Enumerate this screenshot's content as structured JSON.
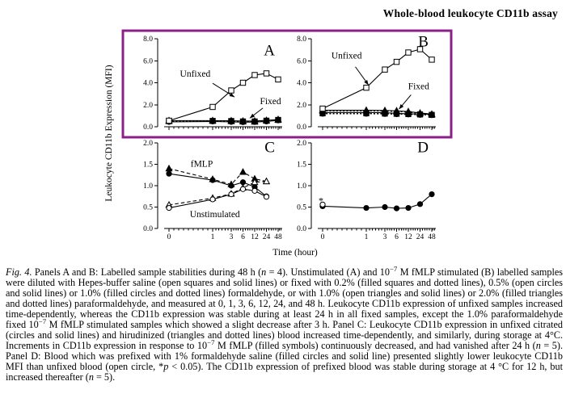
{
  "page_title": "Whole-blood leukocyte CD11b assay",
  "figure": {
    "ylabel": "Leukocyte CD11b Expression (MFI)",
    "xlabel": "Time (hour)",
    "highlight_color": "#8b2089"
  },
  "chart_data": {
    "type": "line",
    "x_label": "Time (hour)",
    "x_values": [
      0,
      1,
      3,
      6,
      12,
      24,
      48
    ],
    "x_scale": "zero-then-log",
    "panels": [
      {
        "label": "A",
        "ylim": [
          0,
          8
        ],
        "ytick_step": 2,
        "yticks": [
          "0.0",
          "2.0",
          "4.0",
          "6.0",
          "8.0"
        ],
        "show_x_labels": false,
        "letter_pos": [
          0.97,
          6.5
        ],
        "series": [
          {
            "name": "Fixed 0.2% formaldehyde",
            "marker": "square",
            "fill": "filled",
            "line": "dotted",
            "values": [
              0.52,
              0.53,
              0.52,
              0.48,
              0.48,
              0.55,
              0.62
            ]
          },
          {
            "name": "Fixed 0.5% formaldehyde",
            "marker": "circle",
            "fill": "open",
            "line": "solid",
            "values": [
              0.44,
              0.48,
              0.44,
              0.42,
              0.43,
              0.48,
              0.58
            ]
          },
          {
            "name": "Fixed 1.0% formaldehyde",
            "marker": "circle",
            "fill": "filled",
            "line": "dotted",
            "values": [
              0.48,
              0.5,
              0.48,
              0.45,
              0.46,
              0.52,
              0.6
            ]
          },
          {
            "name": "Fixed 1.0% paraformaldehyde",
            "marker": "triangle",
            "fill": "open",
            "line": "solid",
            "values": [
              0.56,
              0.56,
              0.55,
              0.52,
              0.52,
              0.58,
              0.66
            ]
          },
          {
            "name": "Fixed 2.0% paraformaldehyde",
            "marker": "triangle",
            "fill": "filled",
            "line": "dotted",
            "values": [
              0.5,
              0.54,
              0.5,
              0.48,
              0.45,
              0.55,
              0.62
            ]
          },
          {
            "name": "Unfixed",
            "marker": "square",
            "fill": "open",
            "line": "solid",
            "values": [
              0.55,
              1.8,
              3.3,
              4.0,
              4.7,
              4.85,
              4.3
            ]
          }
        ],
        "annotations": [
          {
            "text": "Unfixed",
            "x": 0.24,
            "y": 4.55,
            "size": 11.5
          },
          {
            "text": "Fixed",
            "x": 0.93,
            "y": 2.05,
            "size": 11.5
          }
        ],
        "arrows": [
          {
            "from": [
              0.4,
              3.95
            ],
            "to": [
              0.6,
              2.7
            ]
          },
          {
            "from": [
              0.86,
              1.7
            ],
            "to": [
              0.74,
              0.78
            ]
          }
        ]
      },
      {
        "label": "B",
        "ylim": [
          0,
          8
        ],
        "ytick_step": 2,
        "yticks": [
          "0.0",
          "2.0",
          "4.0",
          "6.0",
          "8.0"
        ],
        "show_x_labels": false,
        "letter_pos": [
          0.97,
          7.3
        ],
        "series": [
          {
            "name": "Fixed 0.2% formaldehyde",
            "marker": "square",
            "fill": "filled",
            "line": "dotted",
            "values": [
              1.22,
              1.22,
              1.2,
              1.18,
              1.15,
              1.12,
              1.08
            ]
          },
          {
            "name": "Fixed 0.5% formaldehyde",
            "marker": "circle",
            "fill": "open",
            "line": "solid",
            "values": [
              1.3,
              1.3,
              1.28,
              1.22,
              1.18,
              1.15,
              1.12
            ]
          },
          {
            "name": "Fixed 1.0% formaldehyde",
            "marker": "circle",
            "fill": "filled",
            "line": "dotted",
            "values": [
              1.18,
              1.18,
              1.16,
              1.14,
              1.12,
              1.08,
              1.05
            ]
          },
          {
            "name": "Fixed 1.0% paraformaldehyde",
            "marker": "triangle",
            "fill": "open",
            "line": "solid",
            "values": [
              1.5,
              1.5,
              1.48,
              1.45,
              1.38,
              1.25,
              1.15
            ]
          },
          {
            "name": "Fixed 2.0% paraformaldehyde",
            "marker": "triangle",
            "fill": "filled",
            "line": "dotted",
            "values": [
              1.44,
              1.45,
              1.42,
              1.38,
              1.32,
              1.2,
              1.1
            ]
          },
          {
            "name": "Unfixed",
            "marker": "square",
            "fill": "open",
            "line": "solid",
            "values": [
              1.65,
              3.55,
              5.2,
              5.9,
              6.75,
              7.05,
              6.1
            ]
          }
        ],
        "annotations": [
          {
            "text": "Unfixed",
            "x": 0.22,
            "y": 6.2,
            "size": 11.5
          },
          {
            "text": "Fixed",
            "x": 0.88,
            "y": 3.4,
            "size": 11.5
          }
        ],
        "arrows": [
          {
            "from": [
              0.3,
              5.45
            ],
            "to": [
              0.42,
              3.8
            ]
          },
          {
            "from": [
              0.81,
              2.9
            ],
            "to": [
              0.7,
              1.6
            ]
          }
        ]
      },
      {
        "label": "C",
        "ylim": [
          0,
          2
        ],
        "ytick_step": 0.5,
        "yticks": [
          "0.0",
          "0.5",
          "1.0",
          "1.5",
          "2.0"
        ],
        "show_x_labels": true,
        "letter_pos": [
          0.97,
          1.78
        ],
        "series": [
          {
            "name": "fMLP hirudinized",
            "marker": "triangle",
            "fill": "filled",
            "line": "dashed",
            "values": [
              1.4,
              1.15,
              1.03,
              1.32,
              1.16,
              1.1
            ]
          },
          {
            "name": "fMLP citrated",
            "marker": "circle",
            "fill": "filled",
            "line": "solid",
            "values": [
              1.28,
              1.13,
              1.0,
              1.08,
              0.97,
              0.75
            ]
          },
          {
            "name": "Unstimulated hirudinized",
            "marker": "triangle",
            "fill": "open",
            "line": "dashed",
            "values": [
              0.55,
              0.71,
              0.81,
              0.95,
              1.08,
              1.1
            ]
          },
          {
            "name": "Unstimulated citrated",
            "marker": "circle",
            "fill": "open",
            "line": "solid",
            "values": [
              0.48,
              0.68,
              0.8,
              0.92,
              0.88,
              0.74
            ]
          }
        ],
        "annotations": [
          {
            "text": "fMLP",
            "x": 0.3,
            "y": 1.44,
            "size": 11.5
          },
          {
            "text": "Unstimulated",
            "x": 0.42,
            "y": 0.26,
            "size": 11.5
          }
        ],
        "arrows": []
      },
      {
        "label": "D",
        "ylim": [
          0,
          2
        ],
        "ytick_step": 0.5,
        "yticks": [
          "0.0",
          "0.5",
          "1.0",
          "1.5",
          "2.0"
        ],
        "show_x_labels": true,
        "letter_pos": [
          0.97,
          1.78
        ],
        "series": [
          {
            "name": "Prefixed 1% formaldehyde",
            "marker": "circle",
            "fill": "filled",
            "line": "solid",
            "values": [
              0.52,
              0.48,
              0.5,
              0.47,
              0.48,
              0.57,
              0.8
            ]
          },
          {
            "name": "Unfixed blood",
            "marker": "circle",
            "fill": "open",
            "line": "none",
            "values": [
              0.56,
              null,
              null,
              null,
              null,
              null,
              null
            ]
          }
        ],
        "annotations": [
          {
            "text": "*",
            "x": -0.015,
            "y": 0.58,
            "size": 12
          }
        ],
        "arrows": []
      }
    ]
  },
  "caption": {
    "segments": [
      {
        "text": "Fig. 4.",
        "italic": true
      },
      {
        "text": " Panels A and B: Labelled sample stabilities during 48 h ("
      },
      {
        "text": "n",
        "italic": true
      },
      {
        "text": " = 4). Unstimulated (A) and 10"
      },
      {
        "text": "−7",
        "sup": true
      },
      {
        "text": " M fMLP stimulated (B) labelled samples were diluted with Hepes-buffer saline (open squares and solid lines) or fixed with 0.2% (filled squares and dotted lines), 0.5% (open circles and solid lines) or 1.0% (filled circles and dotted lines) formaldehyde, or with 1.0% (open triangles and solid lines) or 2.0% (filled triangles and dotted lines) paraformaldehyde, and measured at 0, 1, 3, 6, 12, 24, and 48 h. Leukocyte CD11b expression of unfixed samples increased time-dependently, whereas the CD11b expression was stable during at least 24 h in all fixed samples, except the 1.0% paraformaldehyde fixed 10"
      },
      {
        "text": "−7",
        "sup": true
      },
      {
        "text": " M fMLP stimulated samples which showed a slight decrease after 3 h. Panel C: Leukocyte CD11b expression in unfixed citrated (circles and solid lines) and hirudinized (triangles and dotted lines) blood increased time-dependently, and similarly, during storage at 4°C. Increments in CD11b expression in response to 10"
      },
      {
        "text": "−7",
        "sup": true
      },
      {
        "text": " M fMLP (filled symbols) continuously decreased, and had vanished after 24 h ("
      },
      {
        "text": "n",
        "italic": true
      },
      {
        "text": " = 5). Panel D: Blood which was prefixed with 1% formaldehyde saline (filled circles and solid line) presented slightly lower leukocyte CD11b MFI than unfixed blood (open circle, *"
      },
      {
        "text": "p",
        "italic": true
      },
      {
        "text": " < 0.05). The CD11b expression of prefixed blood was stable during storage at 4 °C for 12 h, but increased thereafter ("
      },
      {
        "text": "n",
        "italic": true
      },
      {
        "text": " = 5)."
      }
    ]
  }
}
